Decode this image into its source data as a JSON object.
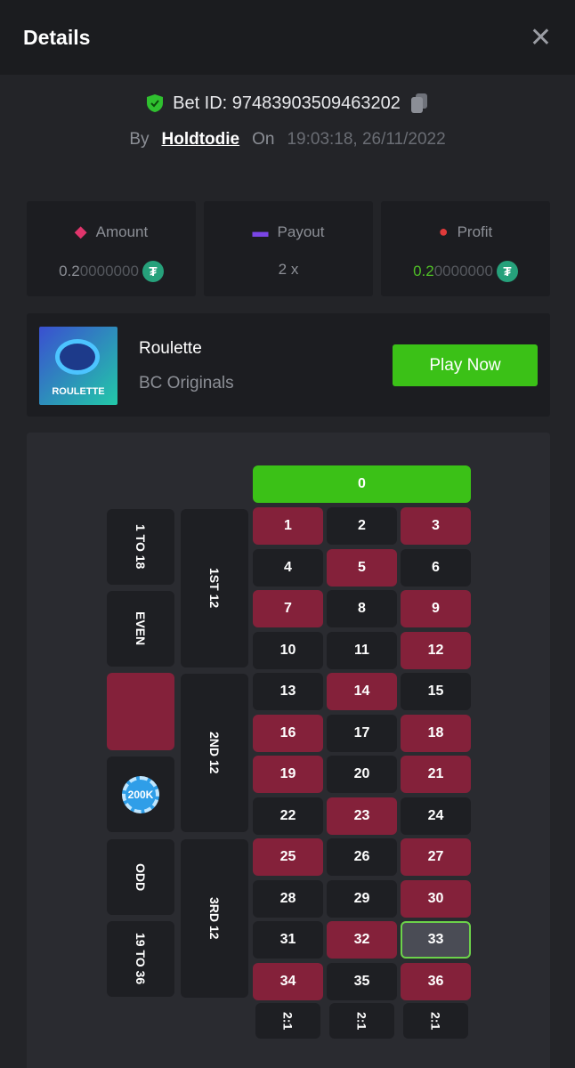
{
  "header": {
    "title": "Details",
    "close_icon": "close-icon"
  },
  "bet": {
    "id_label": "Bet ID: 97483903509463202",
    "by_label": "By",
    "user": "Holdtodie",
    "on_label": "On",
    "time": "19:03:18, 26/11/2022"
  },
  "stats": [
    {
      "label": "Amount",
      "value_main": "0.2",
      "value_dim": "0000000",
      "icon": "amount-icon",
      "color": "#e0356c",
      "value_color": "#8c8f96"
    },
    {
      "label": "Payout",
      "value_main": "2 x",
      "value_dim": "",
      "icon": "payout-card-icon",
      "color": "#7a45e6",
      "value_color": "#8c8f96"
    },
    {
      "label": "Profit",
      "value_main": "0.2",
      "value_dim": "0000000",
      "icon": "profit-icon",
      "color": "#e03a3a",
      "value_color": "#4fbf26"
    }
  ],
  "currency_symbol": "₮",
  "game": {
    "name": "Roulette",
    "provider": "BC Originals",
    "thumb_text": "ROULETTE",
    "play_label": "Play Now"
  },
  "board": {
    "zero": "0",
    "red_numbers": [
      1,
      3,
      5,
      7,
      9,
      12,
      14,
      16,
      18,
      19,
      21,
      23,
      25,
      27,
      30,
      32,
      34,
      36
    ],
    "highlighted": 33,
    "outside": [
      "1 TO 18",
      "EVEN",
      "",
      "",
      "ODD",
      "19 TO 36"
    ],
    "dozens": [
      "1ST 12",
      "2ND 12",
      "3RD 12"
    ],
    "columns": [
      "2:1",
      "2:1",
      "2:1"
    ],
    "chip": "200K"
  }
}
